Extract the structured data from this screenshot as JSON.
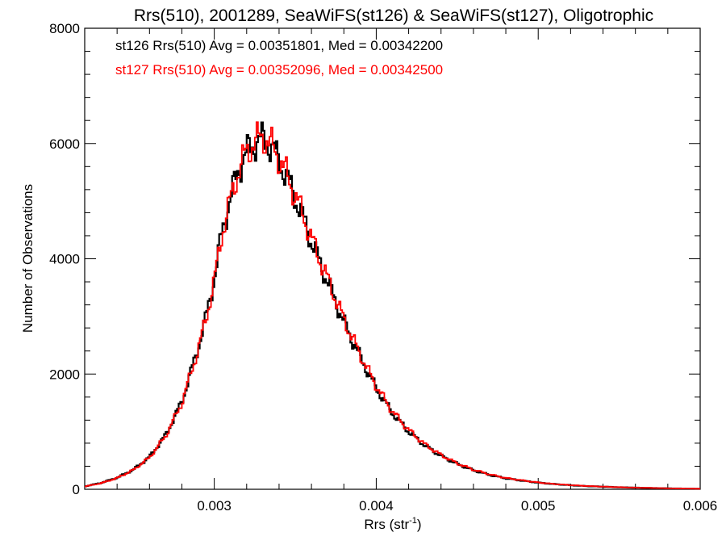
{
  "chart_data": {
    "type": "histogram",
    "title": "Rrs(510), 2001289, SeaWiFS(st126) & SeaWiFS(st127), Oligotrophic",
    "xlabel_main": "Rrs (str",
    "xlabel_sup": "-1",
    "xlabel_close": ")",
    "ylabel": "Number of Observations",
    "xlim": [
      0.0022,
      0.006
    ],
    "ylim": [
      0,
      8000
    ],
    "xticks": [
      {
        "value": 0.003,
        "label": "0.003"
      },
      {
        "value": 0.004,
        "label": "0.004"
      },
      {
        "value": 0.005,
        "label": "0.005"
      },
      {
        "value": 0.006,
        "label": "0.006"
      }
    ],
    "yticks": [
      {
        "value": 0,
        "label": "0"
      },
      {
        "value": 2000,
        "label": "2000"
      },
      {
        "value": 4000,
        "label": "4000"
      },
      {
        "value": 6000,
        "label": "6000"
      },
      {
        "value": 8000,
        "label": "8000"
      }
    ],
    "annotations": [
      {
        "text": "st126 Rrs(510) Avg = 0.00351801, Med = 0.00342200",
        "color": "#000000"
      },
      {
        "text": "st127 Rrs(510) Avg = 0.00352096, Med = 0.00342500",
        "color": "#ff0000"
      }
    ],
    "series": [
      {
        "label_ref": "st126",
        "color": "#000000",
        "points": [
          [
            0.0022,
            50
          ],
          [
            0.0023,
            110
          ],
          [
            0.0024,
            200
          ],
          [
            0.0025,
            340
          ],
          [
            0.0026,
            560
          ],
          [
            0.0027,
            940
          ],
          [
            0.0028,
            1520
          ],
          [
            0.0029,
            2450
          ],
          [
            0.00295,
            3000
          ],
          [
            0.003,
            3650
          ],
          [
            0.00305,
            4500
          ],
          [
            0.0031,
            5050
          ],
          [
            0.00315,
            5550
          ],
          [
            0.0032,
            5850
          ],
          [
            0.00325,
            6000
          ],
          [
            0.0033,
            6080
          ],
          [
            0.00335,
            5950
          ],
          [
            0.0034,
            5700
          ],
          [
            0.00345,
            5400
          ],
          [
            0.0035,
            5050
          ],
          [
            0.00355,
            4700
          ],
          [
            0.0036,
            4300
          ],
          [
            0.0037,
            3600
          ],
          [
            0.0038,
            2900
          ],
          [
            0.0039,
            2300
          ],
          [
            0.004,
            1750
          ],
          [
            0.0041,
            1320
          ],
          [
            0.0042,
            1000
          ],
          [
            0.0043,
            760
          ],
          [
            0.0044,
            580
          ],
          [
            0.0045,
            440
          ],
          [
            0.0046,
            330
          ],
          [
            0.0047,
            250
          ],
          [
            0.0048,
            190
          ],
          [
            0.0049,
            150
          ],
          [
            0.005,
            115
          ],
          [
            0.0051,
            90
          ],
          [
            0.0052,
            70
          ],
          [
            0.0053,
            55
          ],
          [
            0.0054,
            45
          ],
          [
            0.0055,
            35
          ],
          [
            0.0056,
            28
          ],
          [
            0.0057,
            22
          ],
          [
            0.0058,
            16
          ],
          [
            0.0059,
            12
          ],
          [
            0.006,
            8
          ]
        ]
      },
      {
        "label_ref": "st127",
        "color": "#ff0000",
        "points": [
          [
            0.0022,
            48
          ],
          [
            0.0023,
            105
          ],
          [
            0.0024,
            195
          ],
          [
            0.0025,
            335
          ],
          [
            0.0026,
            550
          ],
          [
            0.0027,
            925
          ],
          [
            0.0028,
            1500
          ],
          [
            0.0029,
            2420
          ],
          [
            0.00295,
            2970
          ],
          [
            0.003,
            3620
          ],
          [
            0.00305,
            4470
          ],
          [
            0.0031,
            5020
          ],
          [
            0.00315,
            5530
          ],
          [
            0.0032,
            5860
          ],
          [
            0.00325,
            6020
          ],
          [
            0.0033,
            6120
          ],
          [
            0.00335,
            5980
          ],
          [
            0.0034,
            5740
          ],
          [
            0.00345,
            5450
          ],
          [
            0.0035,
            5090
          ],
          [
            0.00355,
            4750
          ],
          [
            0.0036,
            4350
          ],
          [
            0.0037,
            3650
          ],
          [
            0.0038,
            2950
          ],
          [
            0.0039,
            2340
          ],
          [
            0.004,
            1790
          ],
          [
            0.0041,
            1350
          ],
          [
            0.0042,
            1030
          ],
          [
            0.0043,
            780
          ],
          [
            0.0044,
            595
          ],
          [
            0.0045,
            450
          ],
          [
            0.0046,
            340
          ],
          [
            0.0047,
            258
          ],
          [
            0.0048,
            196
          ],
          [
            0.0049,
            155
          ],
          [
            0.005,
            118
          ],
          [
            0.0051,
            92
          ],
          [
            0.0052,
            72
          ],
          [
            0.0053,
            57
          ],
          [
            0.0054,
            46
          ],
          [
            0.0055,
            36
          ],
          [
            0.0056,
            29
          ],
          [
            0.0057,
            23
          ],
          [
            0.0058,
            17
          ],
          [
            0.0059,
            13
          ],
          [
            0.006,
            9
          ]
        ]
      }
    ]
  }
}
